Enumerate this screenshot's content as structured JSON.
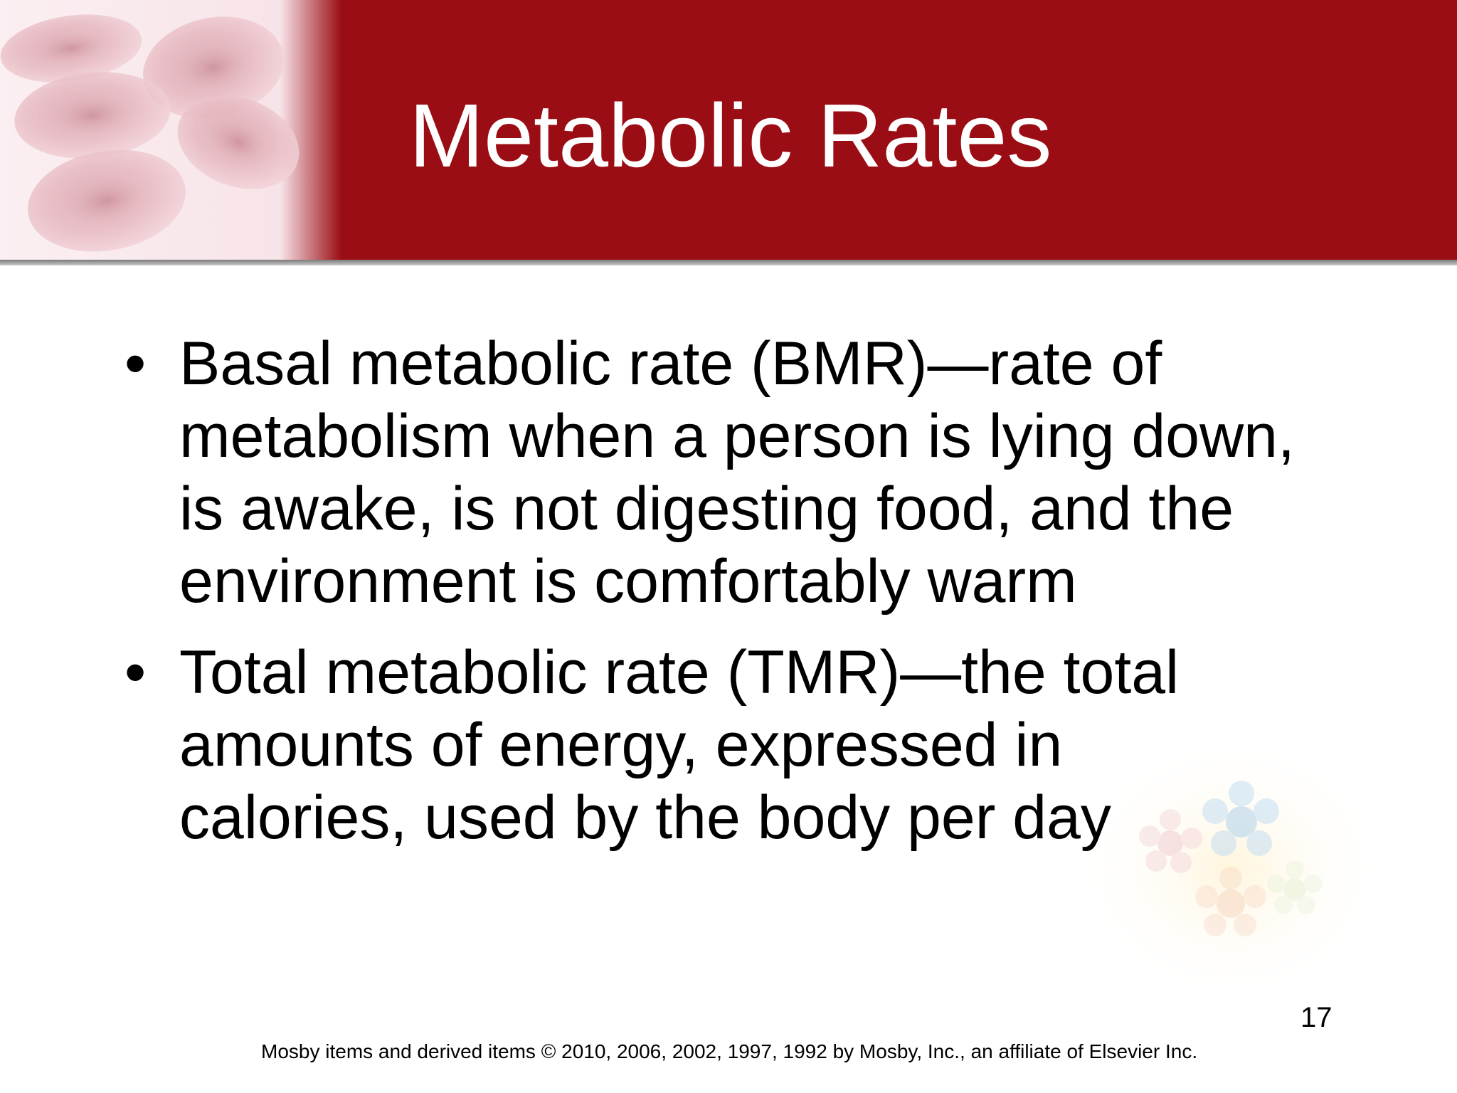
{
  "slide": {
    "title": "Metabolic Rates",
    "bullet_symbol": "•",
    "bullets": [
      {
        "text": "Basal metabolic rate (BMR)—rate of metabolism when a person is lying down, is awake, is not digesting food, and the environment is comfortably warm"
      },
      {
        "text": "Total metabolic rate (TMR)—the total amounts of energy, expressed in calories, used by the body per day"
      }
    ],
    "page_number": "17",
    "footer": "Mosby items and derived items © 2010, 2006, 2002, 1997, 1992 by Mosby, Inc., an affiliate of Elsevier Inc."
  },
  "colors": {
    "header_band": "#9b0d15",
    "body_text": "#000000",
    "title_text": "#ffffff"
  },
  "images": {
    "header_illustration": "red-blood-cells-illustration",
    "corner_decoration": "faded-flowers-decoration"
  }
}
